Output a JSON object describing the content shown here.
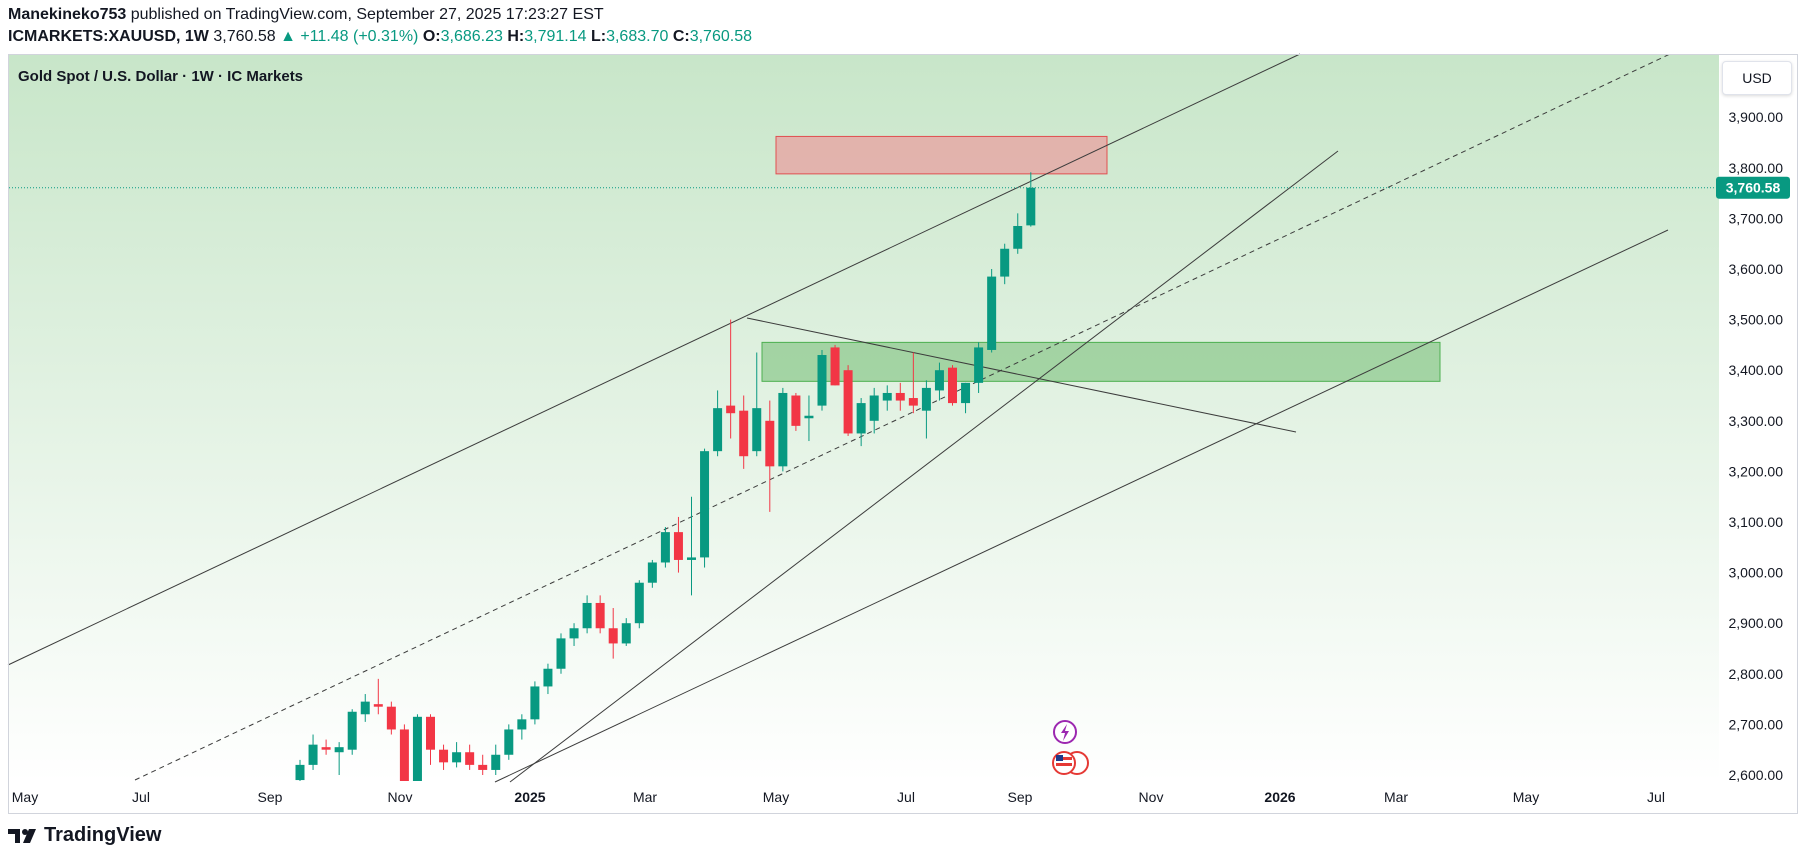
{
  "header": {
    "author": "Manekineko753",
    "published": "published on TradingView.com, September 27, 2025 17:23:27 EST",
    "symbol": "ICMARKETS:XAUUSD, 1W",
    "last": "3,760.58",
    "change": "▲ +11.48 (+0.31%)",
    "o_label": "O:",
    "o_value": "3,686.23",
    "h_label": "H:",
    "h_value": "3,791.14",
    "l_label": "L:",
    "l_value": "3,683.70",
    "c_label": "C:",
    "c_value": "3,760.58"
  },
  "legend": "Gold Spot / U.S. Dollar · 1W · IC Markets",
  "currency_button": "USD",
  "price_tag": "3,760.58",
  "footer": {
    "brand": "TradingView"
  },
  "colors": {
    "up": "#089981",
    "down": "#f23645",
    "bg_top": "#c8e6c9",
    "bg_bottom": "#ffffff",
    "supply_zone": "#e8a0a0",
    "demand_zone": "#8fc98f",
    "trendline": "#3c3c3c"
  },
  "chart_data": {
    "type": "candlestick",
    "timeframe": "1W",
    "y_axis": {
      "ticks": [
        2600,
        2700,
        2800,
        2900,
        3000,
        3100,
        3200,
        3300,
        3400,
        3500,
        3600,
        3700,
        3800,
        3900
      ],
      "tick_labels": [
        "2,600.00",
        "2,700.00",
        "2,800.00",
        "2,900.00",
        "3,000.00",
        "3,100.00",
        "3,200.00",
        "3,300.00",
        "3,400.00",
        "3,500.00",
        "3,600.00",
        "3,700.00",
        "3,800.00",
        "3,900.00"
      ],
      "ylim": [
        2580,
        3960
      ]
    },
    "x_axis": {
      "tick_labels": [
        "May",
        "Jul",
        "Sep",
        "Nov",
        "2025",
        "Mar",
        "May",
        "Jul",
        "Sep",
        "Nov",
        "2026",
        "Mar",
        "May",
        "Jul"
      ],
      "major": [
        "2025",
        "2026"
      ]
    },
    "candles": [
      {
        "o": 2590,
        "h": 2630,
        "l": 2580,
        "c": 2620
      },
      {
        "o": 2620,
        "h": 2680,
        "l": 2610,
        "c": 2660
      },
      {
        "o": 2655,
        "h": 2670,
        "l": 2640,
        "c": 2650
      },
      {
        "o": 2645,
        "h": 2665,
        "l": 2600,
        "c": 2655
      },
      {
        "o": 2650,
        "h": 2730,
        "l": 2640,
        "c": 2725
      },
      {
        "o": 2720,
        "h": 2760,
        "l": 2705,
        "c": 2745
      },
      {
        "o": 2740,
        "h": 2790,
        "l": 2720,
        "c": 2735
      },
      {
        "o": 2735,
        "h": 2745,
        "l": 2680,
        "c": 2690
      },
      {
        "o": 2690,
        "h": 2700,
        "l": 2560,
        "c": 2570
      },
      {
        "o": 2570,
        "h": 2720,
        "l": 2560,
        "c": 2715
      },
      {
        "o": 2715,
        "h": 2720,
        "l": 2620,
        "c": 2650
      },
      {
        "o": 2650,
        "h": 2660,
        "l": 2610,
        "c": 2625
      },
      {
        "o": 2625,
        "h": 2665,
        "l": 2615,
        "c": 2645
      },
      {
        "o": 2645,
        "h": 2660,
        "l": 2610,
        "c": 2620
      },
      {
        "o": 2620,
        "h": 2640,
        "l": 2600,
        "c": 2610
      },
      {
        "o": 2610,
        "h": 2660,
        "l": 2600,
        "c": 2640
      },
      {
        "o": 2640,
        "h": 2700,
        "l": 2630,
        "c": 2690
      },
      {
        "o": 2690,
        "h": 2720,
        "l": 2670,
        "c": 2710
      },
      {
        "o": 2710,
        "h": 2785,
        "l": 2700,
        "c": 2775
      },
      {
        "o": 2775,
        "h": 2820,
        "l": 2760,
        "c": 2810
      },
      {
        "o": 2810,
        "h": 2880,
        "l": 2800,
        "c": 2870
      },
      {
        "o": 2870,
        "h": 2900,
        "l": 2855,
        "c": 2890
      },
      {
        "o": 2890,
        "h": 2955,
        "l": 2880,
        "c": 2940
      },
      {
        "o": 2940,
        "h": 2955,
        "l": 2880,
        "c": 2890
      },
      {
        "o": 2890,
        "h": 2930,
        "l": 2830,
        "c": 2860
      },
      {
        "o": 2860,
        "h": 2910,
        "l": 2855,
        "c": 2900
      },
      {
        "o": 2900,
        "h": 2985,
        "l": 2890,
        "c": 2980
      },
      {
        "o": 2980,
        "h": 3025,
        "l": 2970,
        "c": 3020
      },
      {
        "o": 3020,
        "h": 3090,
        "l": 3010,
        "c": 3080
      },
      {
        "o": 3080,
        "h": 3110,
        "l": 3000,
        "c": 3025
      },
      {
        "o": 3025,
        "h": 3150,
        "l": 2955,
        "c": 3030
      },
      {
        "o": 3030,
        "h": 3245,
        "l": 3010,
        "c": 3240
      },
      {
        "o": 3240,
        "h": 3360,
        "l": 3230,
        "c": 3325
      },
      {
        "o": 3330,
        "h": 3500,
        "l": 3265,
        "c": 3315
      },
      {
        "o": 3320,
        "h": 3350,
        "l": 3205,
        "c": 3230
      },
      {
        "o": 3240,
        "h": 3435,
        "l": 3230,
        "c": 3325
      },
      {
        "o": 3300,
        "h": 3340,
        "l": 3120,
        "c": 3210
      },
      {
        "o": 3210,
        "h": 3365,
        "l": 3200,
        "c": 3355
      },
      {
        "o": 3350,
        "h": 3355,
        "l": 3280,
        "c": 3290
      },
      {
        "o": 3305,
        "h": 3350,
        "l": 3260,
        "c": 3310
      },
      {
        "o": 3330,
        "h": 3440,
        "l": 3320,
        "c": 3430
      },
      {
        "o": 3445,
        "h": 3450,
        "l": 3370,
        "c": 3370
      },
      {
        "o": 3400,
        "h": 3410,
        "l": 3270,
        "c": 3275
      },
      {
        "o": 3275,
        "h": 3345,
        "l": 3250,
        "c": 3335
      },
      {
        "o": 3300,
        "h": 3365,
        "l": 3275,
        "c": 3350
      },
      {
        "o": 3340,
        "h": 3370,
        "l": 3320,
        "c": 3355
      },
      {
        "o": 3355,
        "h": 3375,
        "l": 3320,
        "c": 3340
      },
      {
        "o": 3345,
        "h": 3435,
        "l": 3315,
        "c": 3330
      },
      {
        "o": 3320,
        "h": 3380,
        "l": 3265,
        "c": 3365
      },
      {
        "o": 3360,
        "h": 3415,
        "l": 3340,
        "c": 3400
      },
      {
        "o": 3405,
        "h": 3410,
        "l": 3330,
        "c": 3335
      },
      {
        "o": 3335,
        "h": 3375,
        "l": 3315,
        "c": 3375
      },
      {
        "o": 3375,
        "h": 3455,
        "l": 3355,
        "c": 3445
      },
      {
        "o": 3440,
        "h": 3600,
        "l": 3435,
        "c": 3585
      },
      {
        "o": 3585,
        "h": 3650,
        "l": 3570,
        "c": 3640
      },
      {
        "o": 3640,
        "h": 3710,
        "l": 3630,
        "c": 3685
      },
      {
        "o": 3686.23,
        "h": 3791.14,
        "l": 3683.7,
        "c": 3760.58
      }
    ],
    "current_price": 3760.58,
    "zones": [
      {
        "name": "supply",
        "y1": 3788,
        "y2": 3862,
        "color": "#e8a0a0"
      },
      {
        "name": "demand",
        "y1": 3378,
        "y2": 3455,
        "color": "#8fc98f"
      }
    ]
  }
}
